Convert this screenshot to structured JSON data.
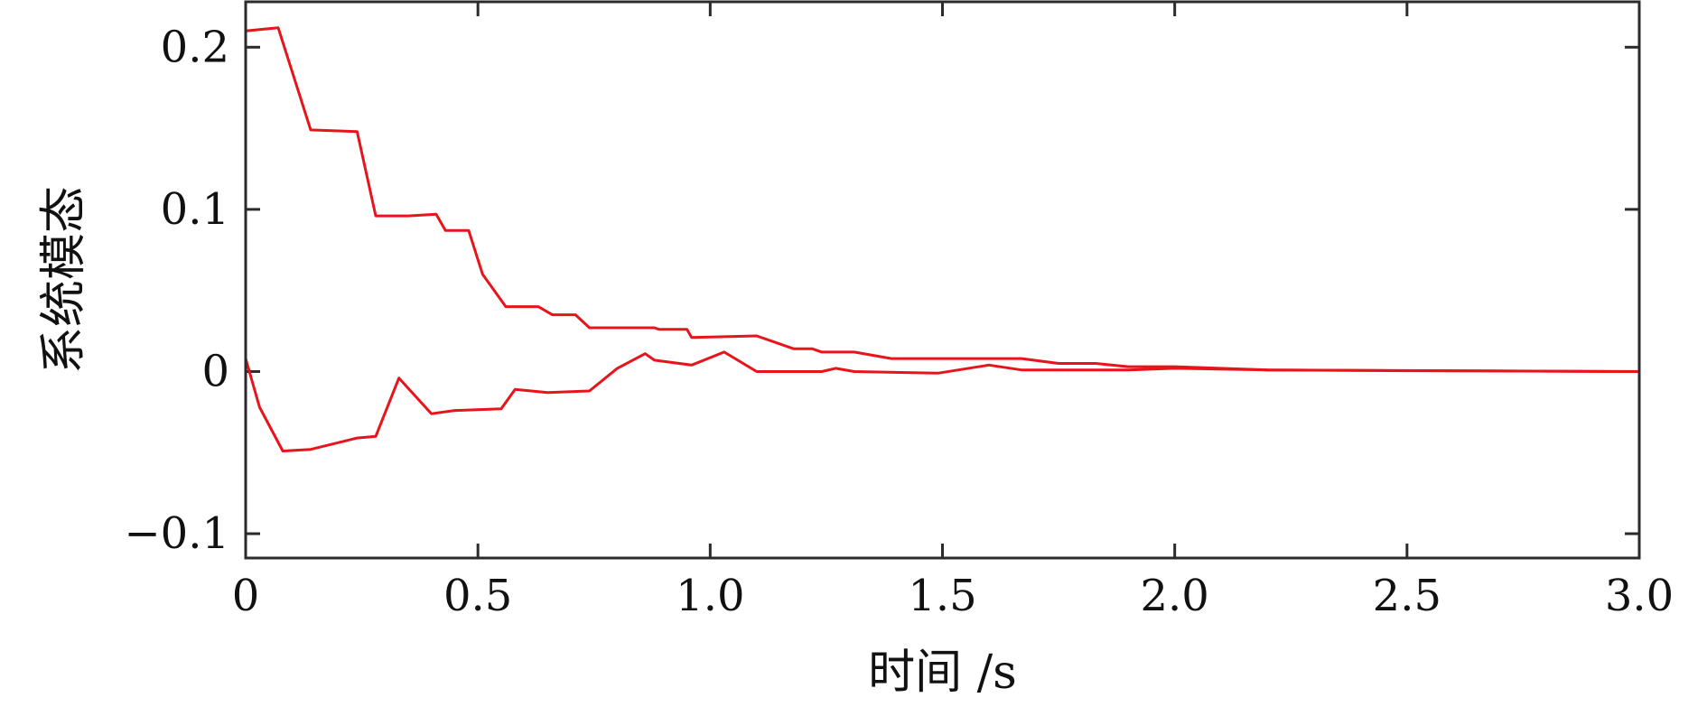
{
  "chart_data": {
    "type": "line",
    "title": "",
    "xlabel": "时间 /s",
    "ylabel": "系统模态",
    "xlim": [
      0,
      3.0
    ],
    "ylim": [
      -0.115,
      0.228
    ],
    "xticks": [
      0,
      0.5,
      1.0,
      1.5,
      2.0,
      2.5,
      3.0
    ],
    "xtick_labels": [
      "0",
      "0.5",
      "1.0",
      "1.5",
      "2.0",
      "2.5",
      "3.0"
    ],
    "yticks": [
      -0.1,
      0,
      0.1,
      0.2
    ],
    "ytick_labels": [
      "−0.1",
      "0",
      "0.1",
      "0.2"
    ],
    "grid": false,
    "legend": "none",
    "colors": {
      "series": "#e8141b",
      "axis": "#2b2b2b"
    },
    "series": [
      {
        "x": [
          0,
          0.07,
          0.14,
          0.24,
          0.28,
          0.35,
          0.41,
          0.43,
          0.48,
          0.51,
          0.56,
          0.63,
          0.66,
          0.71,
          0.74,
          0.88,
          0.89,
          0.95,
          0.96,
          1.1,
          1.18,
          1.22,
          1.24,
          1.31,
          1.39,
          1.5,
          1.67,
          1.75,
          1.83,
          1.9,
          2.0,
          2.2,
          2.5,
          3.0
        ],
        "y": [
          0.21,
          0.212,
          0.149,
          0.148,
          0.096,
          0.096,
          0.097,
          0.087,
          0.087,
          0.06,
          0.04,
          0.04,
          0.035,
          0.035,
          0.027,
          0.027,
          0.026,
          0.026,
          0.021,
          0.022,
          0.014,
          0.014,
          0.012,
          0.012,
          0.008,
          0.008,
          0.008,
          0.005,
          0.005,
          0.003,
          0.003,
          0.001,
          0.0005,
          0
        ]
      },
      {
        "x": [
          0,
          0.03,
          0.08,
          0.14,
          0.24,
          0.28,
          0.33,
          0.4,
          0.45,
          0.55,
          0.58,
          0.65,
          0.74,
          0.8,
          0.86,
          0.88,
          0.96,
          1.03,
          1.1,
          1.24,
          1.27,
          1.31,
          1.49,
          1.6,
          1.67,
          1.9,
          2.0,
          2.2,
          3.0
        ],
        "y": [
          0.008,
          -0.022,
          -0.049,
          -0.048,
          -0.041,
          -0.04,
          -0.004,
          -0.026,
          -0.024,
          -0.023,
          -0.011,
          -0.013,
          -0.012,
          0.002,
          0.011,
          0.007,
          0.004,
          0.012,
          0.0,
          0.0,
          0.002,
          0.0,
          -0.001,
          0.004,
          0.001,
          0.001,
          0.002,
          0.001,
          0.0
        ]
      }
    ]
  }
}
